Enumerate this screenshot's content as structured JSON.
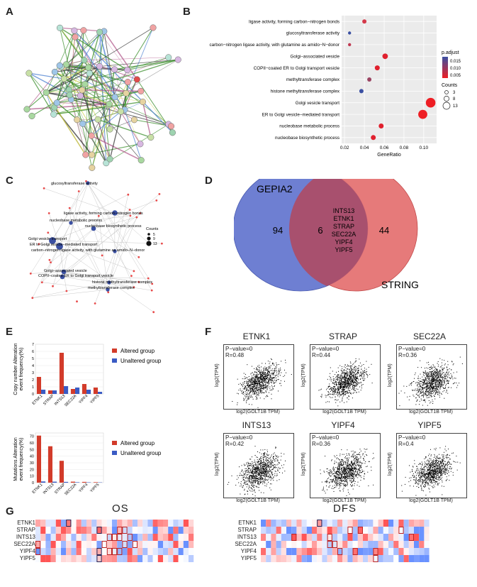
{
  "panels": {
    "A": "A",
    "B": "B",
    "C": "C",
    "D": "D",
    "E": "E",
    "F": "F",
    "G": "G"
  },
  "panel_b": {
    "terms": [
      {
        "label": "ligase activity, forming carbon−nitrogen bonds",
        "ratio": 0.04,
        "count": 4,
        "color": "#d4394a"
      },
      {
        "label": "glucosyltransferase activity",
        "ratio": 0.025,
        "count": 2,
        "color": "#3b50a2"
      },
      {
        "label": "carbon−nitrogen ligase activity, with glutamine as amido−N−donor",
        "ratio": 0.025,
        "count": 2,
        "color": "#c03a52"
      },
      {
        "label": "Golgi−associated vesicle",
        "ratio": 0.061,
        "count": 6,
        "color": "#e0202e"
      },
      {
        "label": "COPII−coated ER to Golgi transport vesicle",
        "ratio": 0.053,
        "count": 5,
        "color": "#e0202e"
      },
      {
        "label": "methyltransferase complex",
        "ratio": 0.045,
        "count": 4,
        "color": "#9a4462"
      },
      {
        "label": "histone methyltransferase complex",
        "ratio": 0.037,
        "count": 4,
        "color": "#3b50a2"
      },
      {
        "label": "Golgi vesicle transport",
        "ratio": 0.107,
        "count": 13,
        "color": "#ee1e24"
      },
      {
        "label": "ER to Golgi vesicle−mediated transport",
        "ratio": 0.099,
        "count": 12,
        "color": "#ee1e24"
      },
      {
        "label": "nucleobase metabolic process",
        "ratio": 0.057,
        "count": 5,
        "color": "#e0202e"
      },
      {
        "label": "nucleobase biosynthetic process",
        "ratio": 0.049,
        "count": 5,
        "color": "#e0202e"
      }
    ],
    "x_ticks": [
      "0.02",
      "0.04",
      "0.06",
      "0.08",
      "0.10"
    ],
    "x_tick_values": [
      0.02,
      0.04,
      0.06,
      0.08,
      0.1
    ],
    "xlim": [
      0.017,
      0.113
    ],
    "xlabel": "GeneRatio",
    "legend_padj_title": "p.adjust",
    "legend_padj_ticks": [
      "0.015",
      "0.010",
      "0.005"
    ],
    "legend_count_title": "Counts",
    "legend_count_ticks": [
      "3",
      "8",
      "13"
    ]
  },
  "panel_c": {
    "labels": [
      "glucosyltransferase activity",
      "ligase activity, forming carbon−nitrogen bonds",
      "nucleobase metabolic process",
      "nucleobase biosynthetic process",
      "Golgi vesicle transport",
      "ER to Golgi vesicle−mediated transport",
      "carbon−nitrogen ligase activity, with glutamine as amido−N−donor",
      "Golgi−associated vesicle",
      "COPII−coated ER to Golgi transport vesicle",
      "histone methyltransferase complex",
      "methyltransferase complex"
    ],
    "legend_title": "Counts",
    "legend_ticks": [
      "5",
      "9",
      "13"
    ]
  },
  "panel_d": {
    "left_label": "GEPIA2",
    "right_label": "STRING",
    "left_count": "94",
    "overlap_count": "6",
    "right_count": "44",
    "genes": [
      "INTS13",
      "ETNK1",
      "STRAP",
      "SEC22A",
      "YIPF4",
      "YIPF5"
    ]
  },
  "panel_e": {
    "top": {
      "ylabel": "Copy number Alteration\nevent frequency(%)",
      "categories": [
        "ETNK1",
        "STRAP",
        "INTS13",
        "SEC22A",
        "YIPF4",
        "YIPF5"
      ],
      "altered": [
        2.4,
        0.5,
        5.8,
        0.7,
        1.4,
        0.9
      ],
      "unaltered": [
        0.6,
        0.5,
        1.1,
        0.9,
        0.6,
        0.3
      ],
      "ylim": [
        0,
        7
      ],
      "ticks": [
        "0",
        "1",
        "2",
        "3",
        "4",
        "5",
        "6",
        "7"
      ]
    },
    "bottom": {
      "ylabel": "Mutations Alteration\nevent frequency(%)",
      "categories": [
        "ETNK1",
        "INTS13",
        "STRAP",
        "SEC22A",
        "YIPF4",
        "YIPF5"
      ],
      "altered": [
        71,
        55,
        33,
        1.5,
        1.2,
        0.8
      ],
      "unaltered": [
        1.8,
        1.5,
        1.2,
        0.6,
        0.5,
        0.4
      ],
      "ylim": [
        0,
        75
      ],
      "ticks": [
        "0",
        "10",
        "20",
        "30",
        "40",
        "50",
        "60",
        "70"
      ]
    },
    "legend_altered": "Altered group",
    "legend_unaltered": "Unaltered group",
    "color_altered": "#d23b2a",
    "color_unaltered": "#3a5bc4"
  },
  "panel_f": {
    "plots": [
      {
        "title": "ETNK1",
        "p": "P−value=0",
        "r": "R=0.48"
      },
      {
        "title": "STRAP",
        "p": "P−value=0",
        "r": "R=0.44"
      },
      {
        "title": "SEC22A",
        "p": "P−value=0",
        "r": "R=0.36"
      },
      {
        "title": "INTS13",
        "p": "P−value=0",
        "r": "R=0.42"
      },
      {
        "title": "YIPF4",
        "p": "P−value=0",
        "r": "R=0.36"
      },
      {
        "title": "YIPF5",
        "p": "P−value=0",
        "r": "R=0.4"
      }
    ],
    "xlabel": "log2(GOLT1B TPM)",
    "ylabel": "log2(TPM)"
  },
  "panel_g": {
    "os_title": "OS",
    "dfs_title": "DFS",
    "rows": [
      "ETNK1",
      "STRAP",
      "INTS13",
      "SEC22A",
      "YIPF4",
      "YIPF5"
    ]
  },
  "colors": {
    "red": "#d7313a",
    "blue": "#3b50a2",
    "venn_blue": "#6e7fd2",
    "venn_red": "#e36b6b"
  }
}
